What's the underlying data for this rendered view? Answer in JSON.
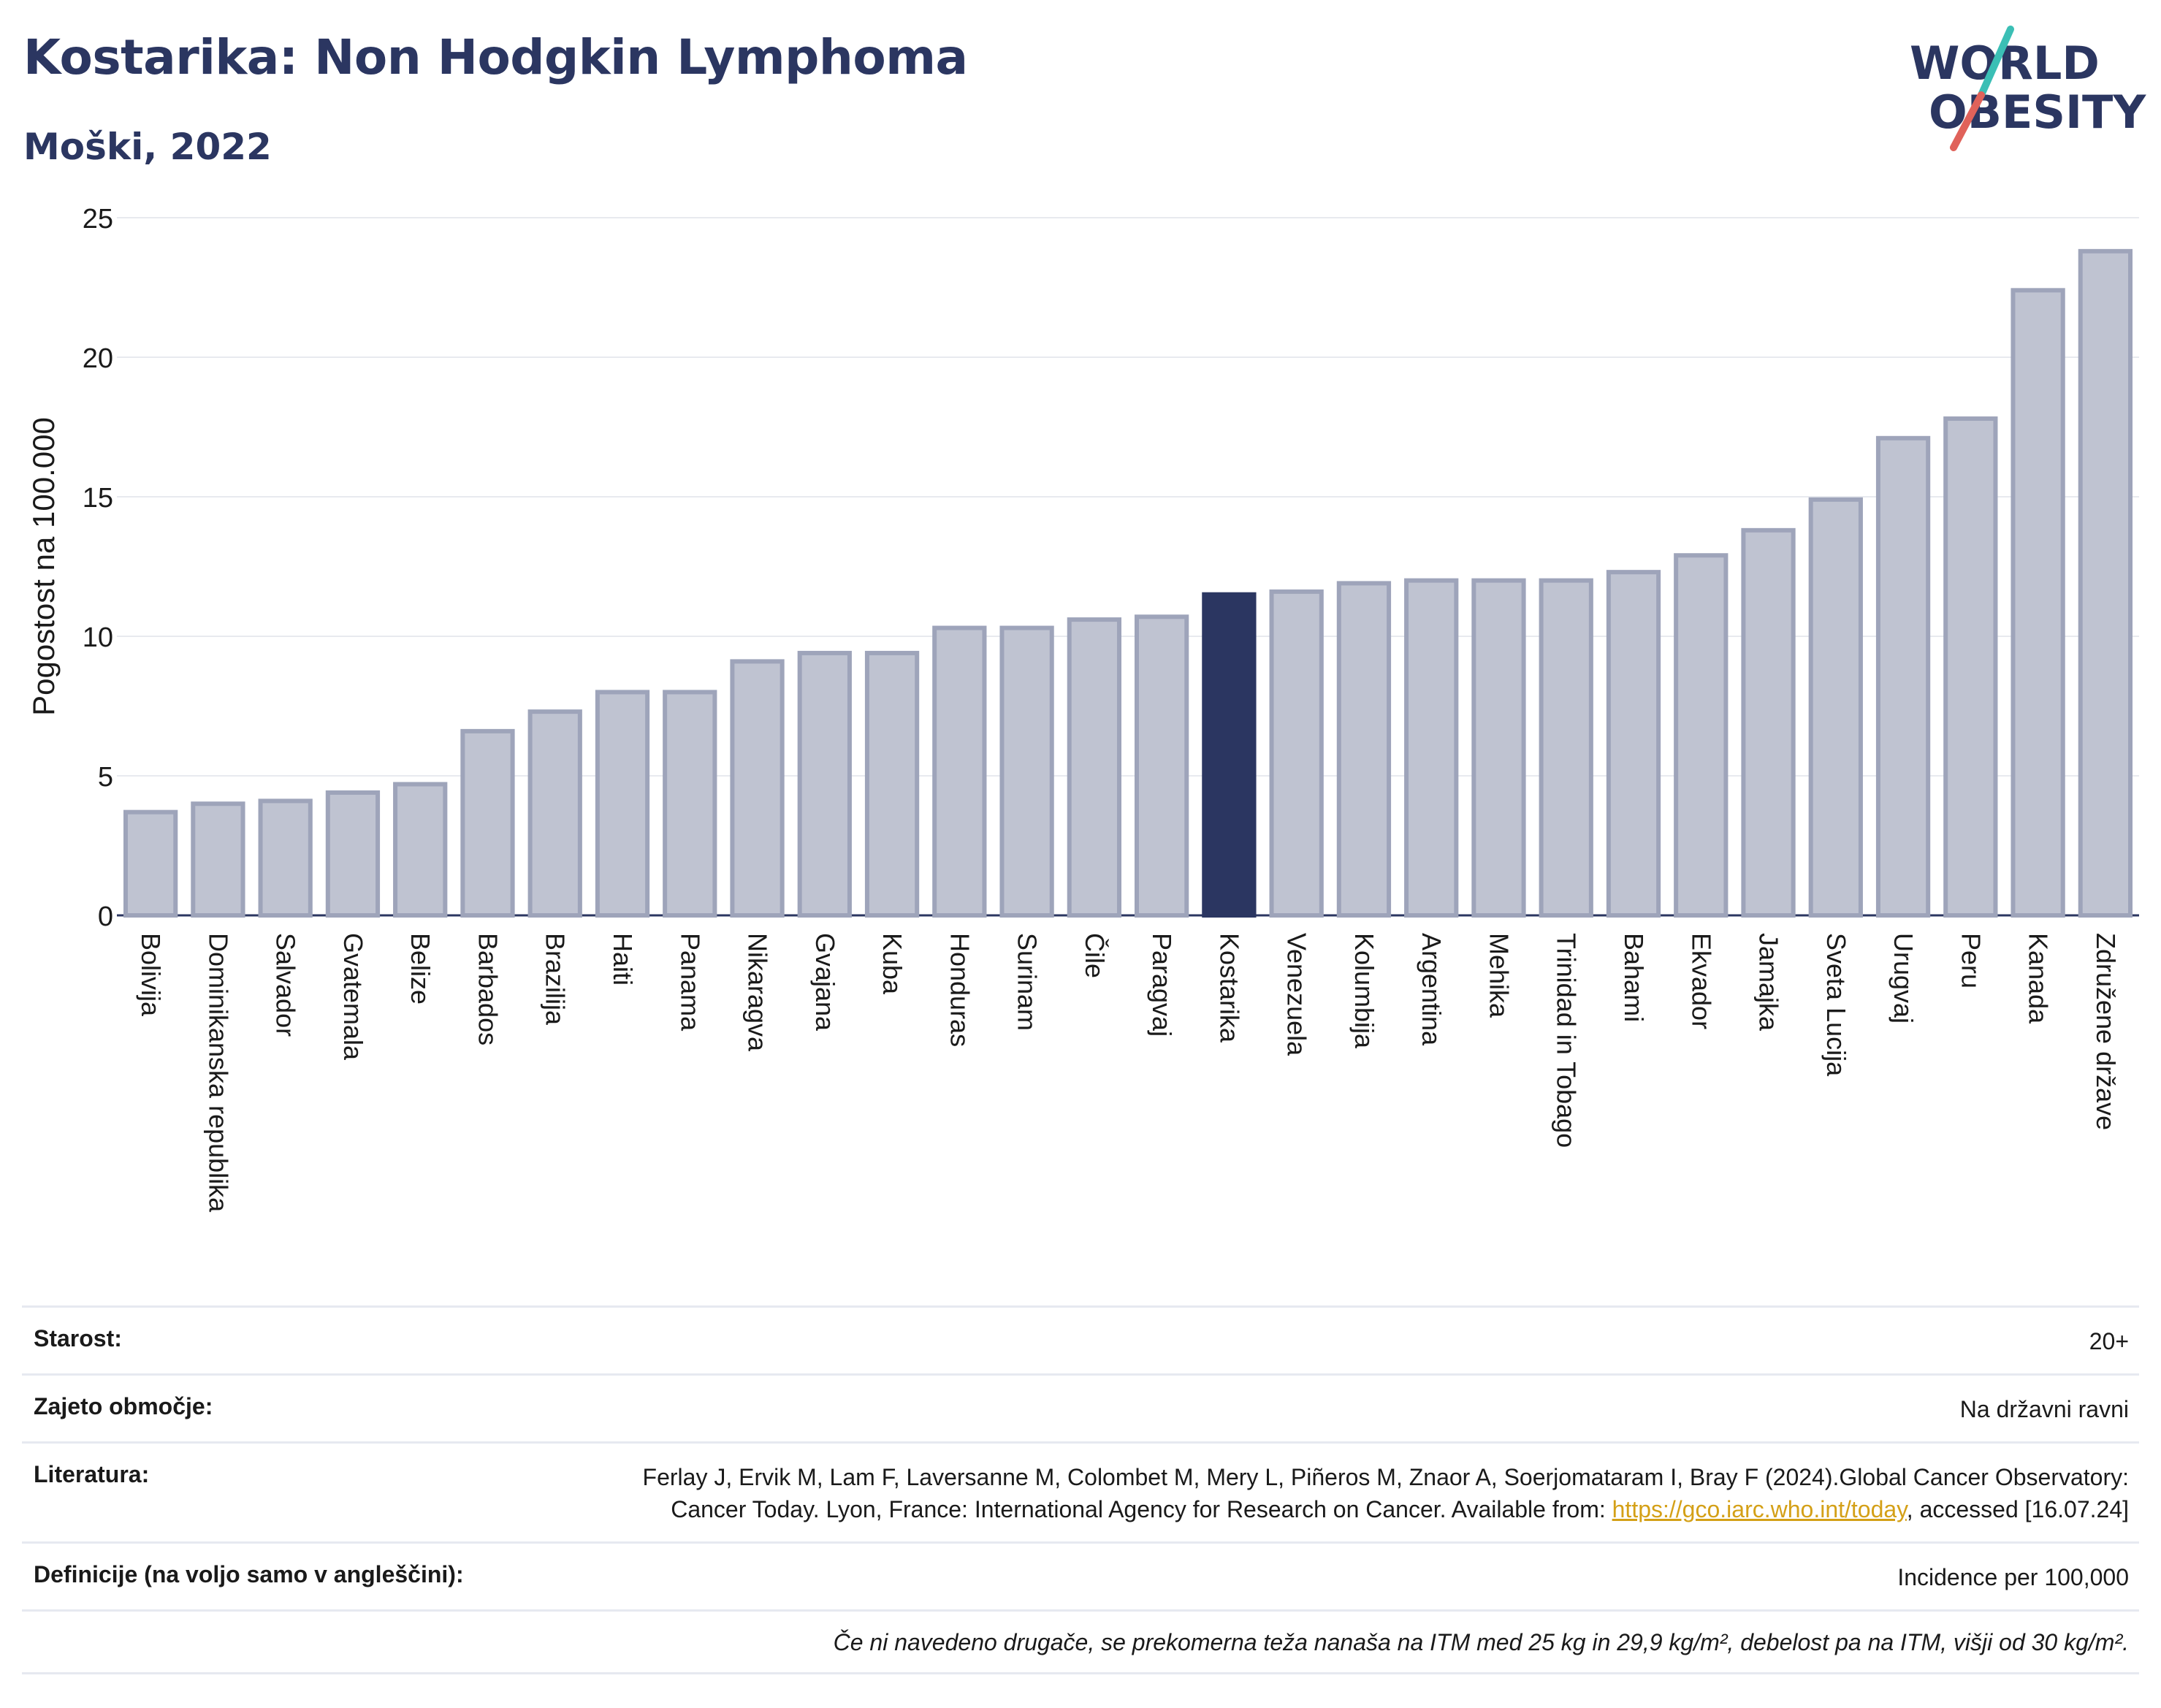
{
  "header": {
    "title": "Kostarika: Non Hodgkin Lymphoma",
    "subtitle": "Moški, 2022"
  },
  "logo": {
    "line1": "WORLD",
    "line2": "OBESITY",
    "colors": {
      "text": "#2b3661",
      "slash_teal": "#3bbfb5",
      "slash_red": "#e0625a"
    }
  },
  "colors": {
    "bar": "#bfc3d1",
    "bar_stroke": "#9ea4ba",
    "highlight": "#2b3661",
    "grid": "#e8eaef",
    "axis_text": "#1a1a1a"
  },
  "chart_data": {
    "type": "bar",
    "ylabel": "Pogostost na 100.000",
    "ylim": [
      0,
      25
    ],
    "yticks": [
      0,
      5,
      10,
      15,
      20,
      25
    ],
    "grid": true,
    "highlight": "Kostarika",
    "categories": [
      "Bolivija",
      "Dominikanska republika",
      "Salvador",
      "Gvatemala",
      "Belize",
      "Barbados",
      "Brazilija",
      "Haiti",
      "Panama",
      "Nikaragva",
      "Gvajana",
      "Kuba",
      "Honduras",
      "Surinam",
      "Čile",
      "Paragvaj",
      "Kostarika",
      "Venezuela",
      "Kolumbija",
      "Argentina",
      "Mehika",
      "Trinidad in Tobago",
      "Bahami",
      "Ekvador",
      "Jamajka",
      "Sveta Lucija",
      "Urugvaj",
      "Peru",
      "Kanada",
      "Združene države"
    ],
    "values": [
      3.7,
      4.0,
      4.1,
      4.4,
      4.7,
      6.6,
      7.3,
      8.0,
      8.0,
      9.1,
      9.4,
      9.4,
      10.3,
      10.3,
      10.6,
      10.7,
      11.5,
      11.6,
      11.9,
      12.0,
      12.0,
      12.0,
      12.3,
      12.9,
      13.8,
      14.9,
      17.1,
      17.8,
      22.4,
      23.8
    ]
  },
  "info": {
    "age_label": "Starost:",
    "age_value": "20+",
    "coverage_label": "Zajeto območje:",
    "coverage_value": "Na državni ravni",
    "literature_label": "Literatura:",
    "literature_text_1": "Ferlay J, Ervik M, Lam F, Laversanne M, Colombet M, Mery L, Piñeros M, Znaor A, Soerjomataram I, Bray F (2024).Global Cancer Observatory: Cancer Today. Lyon, France: International Agency for Research on Cancer. Available from: ",
    "literature_link": "https://gco.iarc.who.int/today",
    "literature_text_2": ", accessed [16.07.24]",
    "definitions_label": "Definicije (na voljo samo v angleščini):",
    "definitions_value": "Incidence per 100,000",
    "note": "Če ni navedeno drugače, se prekomerna teža nanaša na ITM med 25 kg in 29,9 kg/m², debelost pa na ITM, višji od 30 kg/m²."
  }
}
